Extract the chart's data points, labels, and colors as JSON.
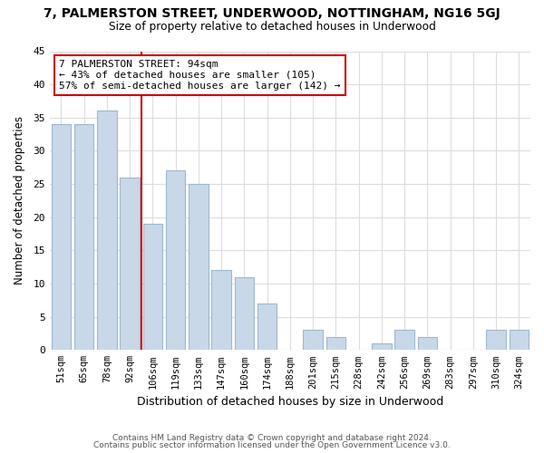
{
  "title": "7, PALMERSTON STREET, UNDERWOOD, NOTTINGHAM, NG16 5GJ",
  "subtitle": "Size of property relative to detached houses in Underwood",
  "xlabel": "Distribution of detached houses by size in Underwood",
  "ylabel": "Number of detached properties",
  "bar_labels": [
    "51sqm",
    "65sqm",
    "78sqm",
    "92sqm",
    "106sqm",
    "119sqm",
    "133sqm",
    "147sqm",
    "160sqm",
    "174sqm",
    "188sqm",
    "201sqm",
    "215sqm",
    "228sqm",
    "242sqm",
    "256sqm",
    "269sqm",
    "283sqm",
    "297sqm",
    "310sqm",
    "324sqm"
  ],
  "bar_values": [
    34,
    34,
    36,
    26,
    19,
    27,
    25,
    12,
    11,
    7,
    0,
    3,
    2,
    0,
    1,
    3,
    2,
    0,
    0,
    3,
    3
  ],
  "bar_color": "#c8d8e8",
  "bar_edge_color": "#a0b8cc",
  "vline_color": "#cc0000",
  "annotation_title": "7 PALMERSTON STREET: 94sqm",
  "annotation_line1": "← 43% of detached houses are smaller (105)",
  "annotation_line2": "57% of semi-detached houses are larger (142) →",
  "annotation_box_color": "#ffffff",
  "annotation_box_edge": "#cc0000",
  "ylim": [
    0,
    45
  ],
  "yticks": [
    0,
    5,
    10,
    15,
    20,
    25,
    30,
    35,
    40,
    45
  ],
  "footnote1": "Contains HM Land Registry data © Crown copyright and database right 2024.",
  "footnote2": "Contains public sector information licensed under the Open Government Licence v3.0.",
  "background_color": "#ffffff",
  "grid_color": "#dddddd"
}
